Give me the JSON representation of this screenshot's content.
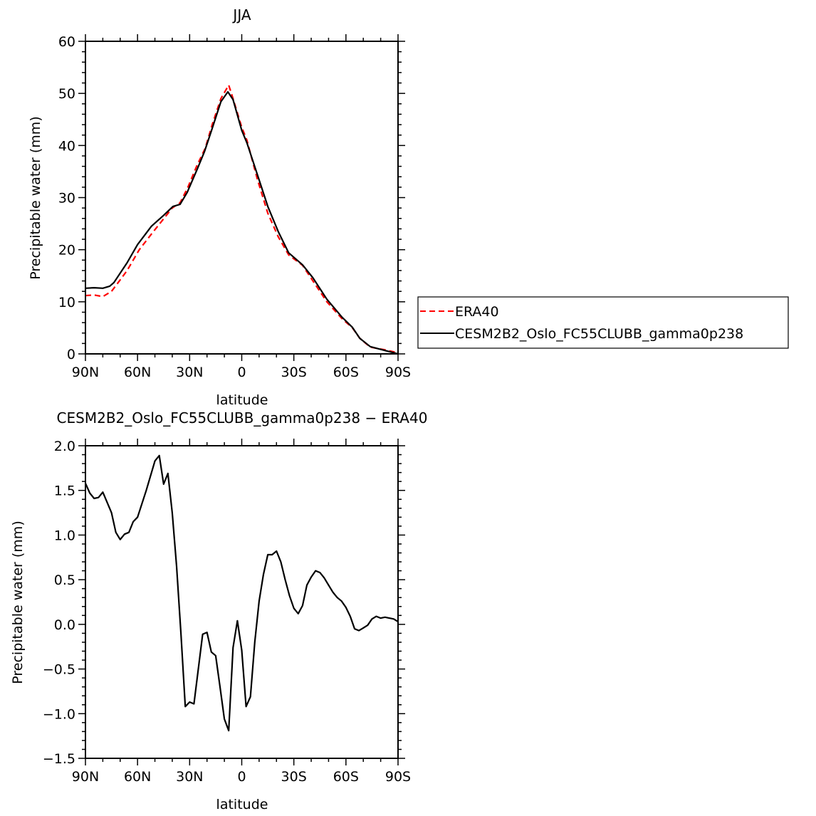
{
  "chart_data": [
    {
      "type": "line",
      "title": "JJA",
      "xlabel": "latitude",
      "ylabel": "Precipitable water (mm)",
      "xlim": [
        90,
        -90
      ],
      "ylim": [
        0,
        60
      ],
      "yticks": [
        0,
        10,
        20,
        30,
        40,
        50,
        60
      ],
      "ytick_labels": [
        "0",
        "10",
        "20",
        "30",
        "40",
        "50",
        "60"
      ],
      "xticks": [
        90,
        60,
        30,
        0,
        -30,
        -60,
        -90
      ],
      "xtick_labels": [
        "90N",
        "60N",
        "30N",
        "0",
        "30S",
        "60S",
        "90S"
      ],
      "legend_position": "right",
      "series": [
        {
          "name": "ERA40",
          "color": "#ff0000",
          "dash": "dashed",
          "x": [
            90,
            85,
            80,
            75,
            70,
            66,
            59,
            52,
            46,
            40,
            35.5,
            31,
            26,
            21,
            17,
            12,
            7.5,
            5,
            0,
            -3,
            -9,
            -15,
            -21,
            -27,
            -35,
            -41,
            -49,
            -57.6,
            -63.7,
            -68,
            -74,
            -82,
            -90
          ],
          "y": [
            11.2,
            11.3,
            11.0,
            12.0,
            14.2,
            16.0,
            20.0,
            23.0,
            25.5,
            28.0,
            29.0,
            32.0,
            36.0,
            39.5,
            44.0,
            49.0,
            51.6,
            49.0,
            43.5,
            41.0,
            33.5,
            27.0,
            22.5,
            19.0,
            17.0,
            14.0,
            10.0,
            6.8,
            5.0,
            3.0,
            1.3,
            0.8,
            0.2
          ]
        },
        {
          "name": "CESM2B2_Oslo_FC55CLUBB_gamma0p238",
          "color": "#000000",
          "dash": "solid",
          "x": [
            90,
            85,
            80,
            76,
            73.6,
            66,
            60,
            52,
            45,
            39.6,
            35.5,
            31.4,
            25.6,
            21.5,
            17.4,
            12,
            8,
            5,
            0,
            -3,
            -9,
            -15,
            -21,
            -27,
            -35,
            -41,
            -49,
            -57.6,
            -63.7,
            -68,
            -74,
            -82,
            -90
          ],
          "y": [
            12.6,
            12.7,
            12.6,
            13.0,
            13.7,
            17.5,
            21.0,
            24.5,
            26.6,
            28.3,
            28.7,
            31.0,
            35.5,
            38.8,
            42.9,
            48.4,
            50.3,
            48.8,
            42.9,
            40.5,
            34.4,
            28.3,
            23.5,
            19.4,
            17.1,
            14.6,
            10.5,
            7.1,
            5.1,
            3.0,
            1.4,
            0.7,
            0.0
          ]
        }
      ]
    },
    {
      "type": "line",
      "title": "CESM2B2_Oslo_FC55CLUBB_gamma0p238 − ERA40",
      "xlabel": "latitude",
      "ylabel": "Precipitable water (mm)",
      "xlim": [
        90,
        -90
      ],
      "ylim": [
        -1.5,
        2.0
      ],
      "yticks": [
        -1.5,
        -1.0,
        -0.5,
        0.0,
        0.5,
        1.0,
        1.5,
        2.0
      ],
      "ytick_labels": [
        "−1.5",
        "−1.0",
        "−0.5",
        "0.0",
        "0.5",
        "1.0",
        "1.5",
        "2.0"
      ],
      "xticks": [
        90,
        60,
        30,
        0,
        -30,
        -60,
        -90
      ],
      "xtick_labels": [
        "90N",
        "60N",
        "30N",
        "0",
        "30S",
        "60S",
        "90S"
      ],
      "series": [
        {
          "name": "difference",
          "color": "#000000",
          "x": [
            90,
            87.5,
            85,
            82.5,
            80,
            75,
            72.5,
            70,
            67.5,
            65,
            62.5,
            60,
            55,
            50,
            47.5,
            45,
            42.5,
            40,
            37.5,
            35,
            32.5,
            30,
            27.5,
            25,
            22.5,
            20,
            17.5,
            15,
            12.5,
            10,
            7.5,
            5,
            2.5,
            0,
            -2.5,
            -5,
            -7.5,
            -10,
            -12.5,
            -15,
            -17.5,
            -20,
            -22.5,
            -25,
            -27.5,
            -30,
            -32.5,
            -35,
            -37.5,
            -40,
            -42.5,
            -45,
            -47.5,
            -50,
            -52.5,
            -55,
            -57.5,
            -60,
            -62.5,
            -65,
            -67.5,
            -70,
            -72.5,
            -75,
            -77.5,
            -80,
            -82.5,
            -85,
            -87.5,
            -90
          ],
          "y": [
            1.58,
            1.47,
            1.41,
            1.42,
            1.48,
            1.25,
            1.03,
            0.95,
            1.01,
            1.03,
            1.15,
            1.2,
            1.5,
            1.83,
            1.89,
            1.57,
            1.69,
            1.25,
            0.65,
            -0.1,
            -0.92,
            -0.87,
            -0.89,
            -0.5,
            -0.11,
            -0.09,
            -0.31,
            -0.35,
            -0.7,
            -1.06,
            -1.19,
            -0.26,
            0.04,
            -0.29,
            -0.92,
            -0.81,
            -0.2,
            0.26,
            0.56,
            0.78,
            0.78,
            0.82,
            0.7,
            0.5,
            0.32,
            0.18,
            0.12,
            0.21,
            0.44,
            0.53,
            0.6,
            0.58,
            0.52,
            0.44,
            0.36,
            0.3,
            0.26,
            0.19,
            0.09,
            -0.05,
            -0.07,
            -0.04,
            -0.01,
            0.06,
            0.09,
            0.07,
            0.08,
            0.07,
            0.06,
            0.03
          ]
        }
      ]
    }
  ]
}
